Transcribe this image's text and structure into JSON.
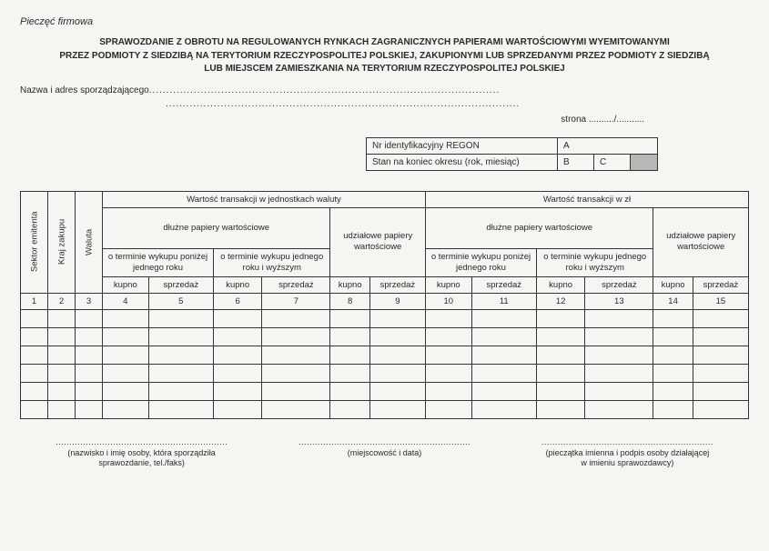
{
  "stamp": "Pieczęć firmowa",
  "title_l1": "SPRAWOZDANIE Z OBROTU NA REGULOWANYCH RYNKACH ZAGRANICZNYCH PAPIERAMI WARTOŚCIOWYMI WYEMITOWANYMI",
  "title_l2": "PRZEZ PODMIOTY Z SIEDZIBĄ NA TERYTORIUM RZECZYPOSPOLITEJ POLSKIEJ, ZAKUPIONYMI LUB SPRZEDANYMI PRZEZ PODMIOTY Z SIEDZIBĄ",
  "title_l3": "LUB MIEJSCEM ZAMIESZKANIA NA TERYTORIUM RZECZYPOSPOLITEJ POLSKIEJ",
  "name_label": "Nazwa i adres sporządzającego",
  "dots_after_name": "......................................................................................................",
  "dots_line2": ".......................................................................................................",
  "page_label": "strona",
  "page_dots": " ........../...........",
  "id": {
    "regon_label": "Nr identyfikacyjny REGON",
    "regon_a": "A",
    "period_label": "Stan na koniec okresu (rok, miesiąc)",
    "period_b": "B",
    "period_c": "C"
  },
  "headers": {
    "v1": "Sektor emitenta",
    "v2": "Kraj zakupu",
    "v3": "Waluta",
    "g1": "Wartość transakcji w jednostkach waluty",
    "g2": "Wartość transakcji w zł",
    "dpw": "dłużne papiery wartościowe",
    "upw": "udziałowe papiery wartościowe",
    "t1": "o terminie wykupu poniżej jednego roku",
    "t2": "o terminie wykupu jednego roku i wyższym",
    "k": "kupno",
    "s": "sprzedaż"
  },
  "nums": {
    "n1": "1",
    "n2": "2",
    "n3": "3",
    "n4": "4",
    "n5": "5",
    "n6": "6",
    "n7": "7",
    "n8": "8",
    "n9": "9",
    "n10": "10",
    "n11": "11",
    "n12": "12",
    "n13": "13",
    "n14": "14",
    "n15": "15"
  },
  "sig": {
    "dots": "...............................................................",
    "c1_l1": "(nazwisko i imię osoby, która sporządziła",
    "c1_l2": "sprawozdanie, tel./faks)",
    "c2": "(miejscowość i data)",
    "c3_l1": "(pieczątka imienna i podpis osoby działającej",
    "c3_l2": "w imieniu sprawozdawcy)"
  }
}
